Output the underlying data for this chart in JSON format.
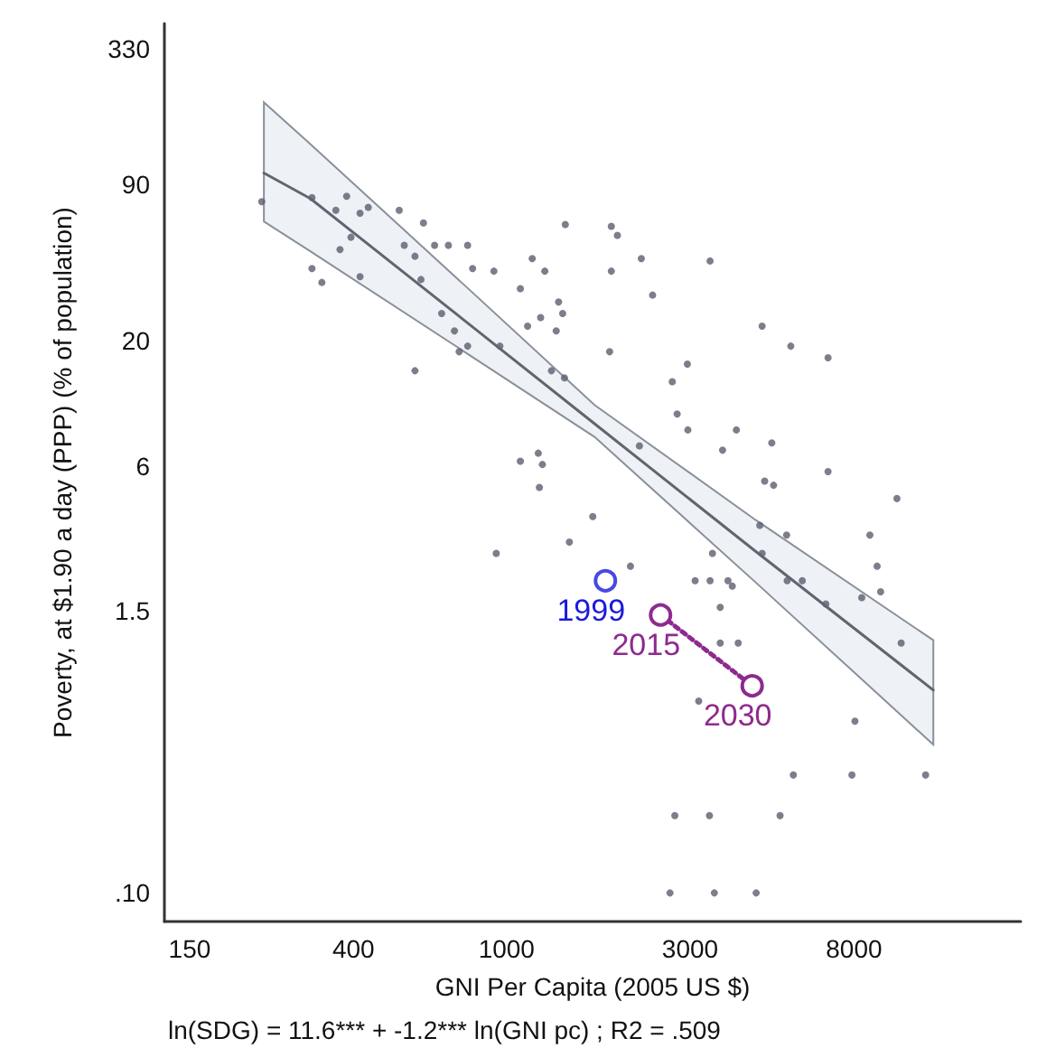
{
  "chart_data": {
    "type": "scatter",
    "xlabel": "GNI Per Capita (2005 US $)",
    "ylabel": "Poverty, at $1.90 a day (PPP) (% of population)",
    "annotations": [
      "ln(SDG) = 11.6*** + -1.2*** ln(GNI pc) ; R2 = .509",
      {
        "text": "1999",
        "x": 1807,
        "y": 2.0
      },
      {
        "text": "2015",
        "x": 2513,
        "y": 1.44
      },
      {
        "text": "2030",
        "x": 4349,
        "y": 0.73
      }
    ],
    "log": "xy",
    "xlim": [
      129,
      21700
    ],
    "ylim": [
      0.076,
      420
    ],
    "xticks": [
      150,
      400,
      1000,
      3000,
      8000
    ],
    "yticks": [
      {
        "value": 0.1,
        "label": ".10"
      },
      1.5,
      6,
      20,
      90,
      330
    ],
    "marker": "circle",
    "series": [
      {
        "color": "#5c5c6e",
        "x": [
          231,
          312,
          312,
          331,
          360,
          384,
          416,
          437,
          394,
          369,
          416,
          526,
          608,
          542,
          578,
          599,
          650,
          706,
          792,
          816,
          927,
          678,
          732,
          753,
          792,
          578,
          961,
          1166,
          1257,
          1086,
          1134,
          1226,
          1365,
          1399,
          1346,
          1421,
          1308,
          1414,
          1086,
          1209,
          1239,
          1217,
          1872,
          1872,
          1853,
          1941,
          2240,
          3380,
          2396,
          4616,
          5480,
          6848,
          2951,
          2696,
          2776,
          2960,
          3957,
          2215,
          3643,
          4890,
          4686,
          4944,
          6848,
          10343,
          1675,
          4552,
          5345,
          8796,
          1456,
          3429,
          4616,
          9186,
          2099,
          3091,
          3380,
          3763,
          3861,
          5362,
          5870,
          9380,
          8380,
          3592,
          6759,
          940,
          3592,
          4000,
          10610,
          3158,
          8045,
          5564,
          7900,
          12280,
          2737,
          3368,
          5139,
          2659,
          3468,
          4454
        ],
        "values": [
          76,
          79,
          40,
          35,
          70,
          80,
          68,
          72,
          54,
          48,
          37,
          70,
          62,
          50,
          45,
          36,
          50,
          50,
          50,
          40,
          39,
          26,
          22,
          18,
          19,
          15,
          19,
          44,
          39,
          33,
          23,
          25,
          29,
          26,
          22,
          61,
          15,
          14,
          6.3,
          6.8,
          6.1,
          4.9,
          60,
          39,
          18,
          55,
          44,
          43,
          31,
          23,
          19,
          17,
          16,
          13.5,
          9.9,
          8.5,
          8.5,
          7.3,
          7.0,
          7.5,
          5.2,
          5.0,
          5.7,
          4.4,
          3.7,
          3.4,
          3.1,
          3.1,
          2.9,
          2.6,
          2.6,
          2.3,
          2.3,
          2.0,
          2.0,
          2.0,
          1.9,
          2.0,
          2.0,
          1.8,
          1.7,
          1.55,
          1.6,
          2.6,
          1.1,
          1.1,
          1.1,
          0.63,
          0.52,
          0.31,
          0.31,
          0.31,
          0.21,
          0.21,
          0.21,
          0.1,
          0.1,
          0.1
        ]
      },
      {
        "type": "line",
        "color": "#5f6670",
        "marker": "none",
        "x": [
          234,
          309,
          798,
          1693,
          4454,
          12860
        ],
        "values": [
          100,
          78.3,
          23.5,
          9.02,
          2.64,
          0.7
        ],
        "lower": [
          62.8,
          47.2,
          17.5,
          7.95,
          1.96,
          0.415
        ],
        "upper": [
          197,
          132,
          32.8,
          10.8,
          3.57,
          1.13
        ]
      },
      {
        "color": "#1a1adb",
        "x": [
          1807
        ],
        "values": [
          2.0
        ]
      },
      {
        "type": "line",
        "color": "#8e2a8e",
        "line_style": "dotted",
        "x": [
          2513,
          4349
        ],
        "values": [
          1.44,
          0.73
        ]
      }
    ]
  }
}
